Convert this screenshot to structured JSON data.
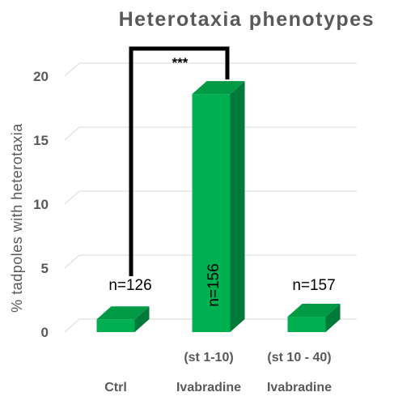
{
  "chart_data": {
    "type": "bar",
    "title": "Heterotaxia phenotypes",
    "ylabel": "% tadpoles with heterotaxia",
    "xlabel": "",
    "ylim": [
      0,
      20
    ],
    "yticks": [
      "0",
      "5",
      "10",
      "15",
      "20"
    ],
    "grid": true,
    "style": "3d",
    "bar_color": "#00b050",
    "categories": [
      "Ctrl",
      "Ivabradine",
      "Ivabradine"
    ],
    "sublabels": [
      "",
      "(st 1-10)",
      "(st 10 - 40)"
    ],
    "values": [
      1.0,
      18.6,
      1.2
    ],
    "n_labels": [
      "n=126",
      "n=156",
      "n=157"
    ],
    "significance": {
      "from": 0,
      "to": 1,
      "label": "***"
    }
  }
}
